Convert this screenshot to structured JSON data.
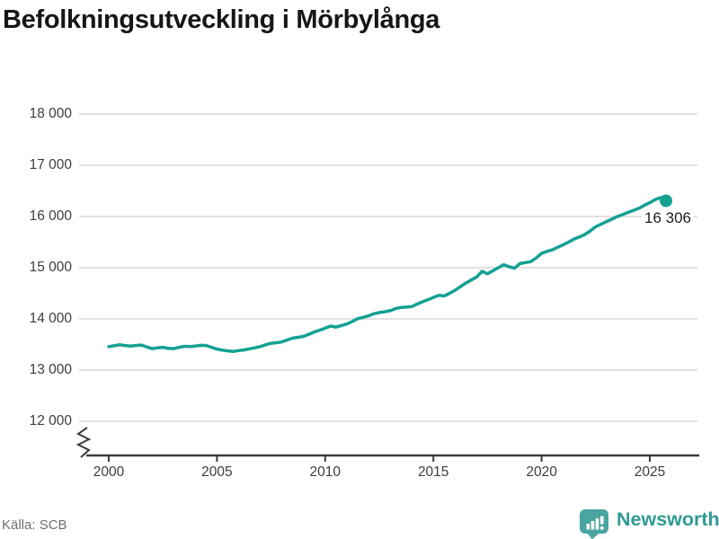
{
  "page": {
    "title": "Befolkningsutveckling i Mörbylånga"
  },
  "footer": {
    "source": "Källa: SCB",
    "brand": "Newsworthy"
  },
  "colors": {
    "line": "#14a192",
    "dot": "#14a192",
    "logo": "#4aa4a0",
    "brand_text": "#2f9a94",
    "grid": "#e2e2e2",
    "axis": "#3c3c3c",
    "title_text": "#161616",
    "tick_label": "#3d3d3d",
    "source_text": "#6f6f6f"
  },
  "chart_data": {
    "type": "line",
    "title": "Befolkningsutveckling i Mörbylånga",
    "xlabel": "",
    "ylabel": "",
    "source": "Källa: SCB",
    "series_name": "Befolkning",
    "x_start": 2000,
    "x_step": 0.25,
    "values": [
      13460,
      13475,
      13495,
      13480,
      13470,
      13480,
      13490,
      13455,
      13420,
      13435,
      13445,
      13425,
      13420,
      13445,
      13465,
      13460,
      13470,
      13485,
      13480,
      13445,
      13410,
      13390,
      13375,
      13365,
      13380,
      13395,
      13415,
      13435,
      13460,
      13495,
      13525,
      13535,
      13550,
      13590,
      13625,
      13640,
      13660,
      13700,
      13745,
      13780,
      13820,
      13860,
      13840,
      13870,
      13900,
      13950,
      14005,
      14030,
      14060,
      14100,
      14125,
      14140,
      14160,
      14200,
      14225,
      14230,
      14240,
      14290,
      14335,
      14375,
      14420,
      14460,
      14450,
      14500,
      14560,
      14630,
      14700,
      14760,
      14820,
      14930,
      14880,
      14940,
      15000,
      15060,
      15020,
      14990,
      15080,
      15100,
      15120,
      15190,
      15280,
      15320,
      15350,
      15400,
      15450,
      15500,
      15560,
      15600,
      15650,
      15720,
      15800,
      15850,
      15900,
      15950,
      16000,
      16040,
      16080,
      16120,
      16160,
      16220,
      16270,
      16330,
      16370,
      16306
    ],
    "end_value": 16306,
    "end_label": "16 306",
    "ylim": [
      12000,
      18000
    ],
    "xlim": [
      2000,
      2026
    ],
    "grid": "horizontal",
    "legend": "none",
    "axis_break": true,
    "yticks": [
      {
        "value": 12000,
        "label": "12 000"
      },
      {
        "value": 13000,
        "label": "13 000"
      },
      {
        "value": 14000,
        "label": "14 000"
      },
      {
        "value": 15000,
        "label": "15 000"
      },
      {
        "value": 16000,
        "label": "16 000"
      },
      {
        "value": 17000,
        "label": "17 000"
      },
      {
        "value": 18000,
        "label": "18 000"
      }
    ],
    "xticks": [
      {
        "value": 2000,
        "label": "2000"
      },
      {
        "value": 2005,
        "label": "2005"
      },
      {
        "value": 2010,
        "label": "2010"
      },
      {
        "value": 2015,
        "label": "2015"
      },
      {
        "value": 2020,
        "label": "2020"
      },
      {
        "value": 2025,
        "label": "2025"
      }
    ]
  }
}
